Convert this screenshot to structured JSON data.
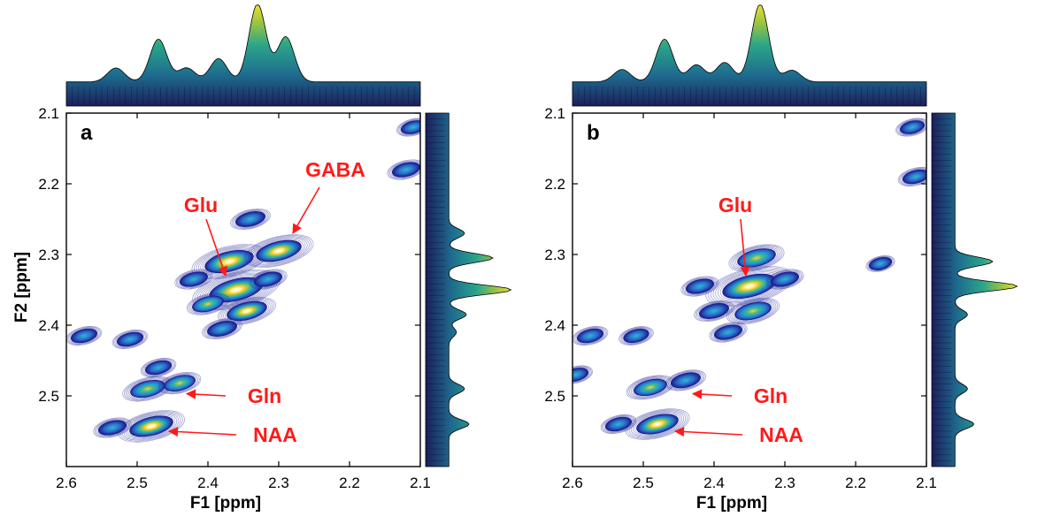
{
  "figure": {
    "ylabel": "F2 [ppm]",
    "xlabel": "F1 [ppm]"
  },
  "colors": {
    "annotation": "#ff1a1a",
    "contour_low": "#1a1a8c",
    "contour_high": "#ffffff",
    "axis": "#000000"
  },
  "chart_data": [
    {
      "type": "heatmap",
      "panel_label": "a",
      "xlabel": "F1 [ppm]",
      "ylabel": "F2 [ppm]",
      "x_range": [
        2.6,
        2.1
      ],
      "y_range": [
        2.1,
        2.6
      ],
      "x_ticks": [
        "2.6",
        "2.5",
        "2.4",
        "2.3",
        "2.2",
        "2.1"
      ],
      "y_ticks": [
        "2.1",
        "2.2",
        "2.3",
        "2.4",
        "2.5"
      ],
      "x_tick_values": [
        2.6,
        2.5,
        2.4,
        2.3,
        2.2,
        2.1
      ],
      "y_tick_values": [
        2.1,
        2.2,
        2.3,
        2.4,
        2.5
      ],
      "peaks": [
        {
          "f1": 2.36,
          "f2": 2.35,
          "intensity": 1.0
        },
        {
          "f1": 2.37,
          "f2": 2.31,
          "intensity": 0.85
        },
        {
          "f1": 2.3,
          "f2": 2.295,
          "intensity": 0.75
        },
        {
          "f1": 2.34,
          "f2": 2.25,
          "intensity": 0.3
        },
        {
          "f1": 2.345,
          "f2": 2.38,
          "intensity": 0.6
        },
        {
          "f1": 2.4,
          "f2": 2.37,
          "intensity": 0.35
        },
        {
          "f1": 2.38,
          "f2": 2.405,
          "intensity": 0.3
        },
        {
          "f1": 2.42,
          "f2": 2.335,
          "intensity": 0.25
        },
        {
          "f1": 2.315,
          "f2": 2.335,
          "intensity": 0.25
        },
        {
          "f1": 2.48,
          "f2": 2.543,
          "intensity": 0.7
        },
        {
          "f1": 2.485,
          "f2": 2.49,
          "intensity": 0.45
        },
        {
          "f1": 2.44,
          "f2": 2.482,
          "intensity": 0.35
        },
        {
          "f1": 2.47,
          "f2": 2.46,
          "intensity": 0.2
        },
        {
          "f1": 2.535,
          "f2": 2.545,
          "intensity": 0.25
        },
        {
          "f1": 2.575,
          "f2": 2.415,
          "intensity": 0.2
        },
        {
          "f1": 2.51,
          "f2": 2.42,
          "intensity": 0.2
        },
        {
          "f1": 2.12,
          "f2": 2.18,
          "intensity": 0.25
        },
        {
          "f1": 2.11,
          "f2": 2.12,
          "intensity": 0.15
        }
      ],
      "projection_f1": [
        {
          "ppm": 2.33,
          "height": 1.0
        },
        {
          "ppm": 2.29,
          "height": 0.58
        },
        {
          "ppm": 2.47,
          "height": 0.55
        },
        {
          "ppm": 2.385,
          "height": 0.3
        },
        {
          "ppm": 2.43,
          "height": 0.18
        },
        {
          "ppm": 2.53,
          "height": 0.18
        }
      ],
      "projection_f2": [
        {
          "ppm": 2.35,
          "height": 1.0
        },
        {
          "ppm": 2.305,
          "height": 0.7
        },
        {
          "ppm": 2.27,
          "height": 0.25
        },
        {
          "ppm": 2.385,
          "height": 0.28
        },
        {
          "ppm": 2.49,
          "height": 0.25
        },
        {
          "ppm": 2.54,
          "height": 0.32
        },
        {
          "ppm": 2.41,
          "height": 0.12
        }
      ],
      "annotations": [
        {
          "text": "GABA",
          "text_ppm": [
            2.22,
            2.19
          ],
          "target_ppm": [
            2.28,
            2.27
          ]
        },
        {
          "text": "Glu",
          "text_ppm": [
            2.41,
            2.24
          ],
          "target_ppm": [
            2.375,
            2.33
          ]
        },
        {
          "text": "Gln",
          "text_ppm": [
            2.32,
            2.51
          ],
          "target_ppm": [
            2.43,
            2.497
          ]
        },
        {
          "text": "NAA",
          "text_ppm": [
            2.305,
            2.565
          ],
          "target_ppm": [
            2.455,
            2.55
          ]
        }
      ]
    },
    {
      "type": "heatmap",
      "panel_label": "b",
      "xlabel": "F1 [ppm]",
      "ylabel": "",
      "x_range": [
        2.6,
        2.1
      ],
      "y_range": [
        2.1,
        2.6
      ],
      "x_ticks": [
        "2.6",
        "2.5",
        "2.4",
        "2.3",
        "2.2",
        "2.1"
      ],
      "y_ticks": [
        "2.1",
        "2.2",
        "2.3",
        "2.4",
        "2.5"
      ],
      "x_tick_values": [
        2.6,
        2.5,
        2.4,
        2.3,
        2.2,
        2.1
      ],
      "y_tick_values": [
        2.1,
        2.2,
        2.3,
        2.4,
        2.5
      ],
      "peaks": [
        {
          "f1": 2.35,
          "f2": 2.345,
          "intensity": 1.0
        },
        {
          "f1": 2.34,
          "f2": 2.305,
          "intensity": 0.55
        },
        {
          "f1": 2.345,
          "f2": 2.38,
          "intensity": 0.5
        },
        {
          "f1": 2.4,
          "f2": 2.38,
          "intensity": 0.3
        },
        {
          "f1": 2.38,
          "f2": 2.41,
          "intensity": 0.25
        },
        {
          "f1": 2.42,
          "f2": 2.345,
          "intensity": 0.25
        },
        {
          "f1": 2.3,
          "f2": 2.335,
          "intensity": 0.25
        },
        {
          "f1": 2.48,
          "f2": 2.54,
          "intensity": 0.65
        },
        {
          "f1": 2.49,
          "f2": 2.488,
          "intensity": 0.4
        },
        {
          "f1": 2.44,
          "f2": 2.478,
          "intensity": 0.3
        },
        {
          "f1": 2.535,
          "f2": 2.54,
          "intensity": 0.2
        },
        {
          "f1": 2.575,
          "f2": 2.415,
          "intensity": 0.2
        },
        {
          "f1": 2.51,
          "f2": 2.415,
          "intensity": 0.18
        },
        {
          "f1": 2.595,
          "f2": 2.47,
          "intensity": 0.15
        },
        {
          "f1": 2.115,
          "f2": 2.19,
          "intensity": 0.2
        },
        {
          "f1": 2.12,
          "f2": 2.12,
          "intensity": 0.15
        },
        {
          "f1": 2.165,
          "f2": 2.313,
          "intensity": 0.1
        }
      ],
      "projection_f1": [
        {
          "ppm": 2.335,
          "height": 1.0
        },
        {
          "ppm": 2.47,
          "height": 0.55
        },
        {
          "ppm": 2.425,
          "height": 0.22
        },
        {
          "ppm": 2.385,
          "height": 0.25
        },
        {
          "ppm": 2.53,
          "height": 0.16
        },
        {
          "ppm": 2.29,
          "height": 0.15
        }
      ],
      "projection_f2": [
        {
          "ppm": 2.345,
          "height": 1.0
        },
        {
          "ppm": 2.31,
          "height": 0.6
        },
        {
          "ppm": 2.385,
          "height": 0.2
        },
        {
          "ppm": 2.49,
          "height": 0.2
        },
        {
          "ppm": 2.54,
          "height": 0.3
        }
      ],
      "annotations": [
        {
          "text": "Glu",
          "text_ppm": [
            2.37,
            2.24
          ],
          "target_ppm": [
            2.355,
            2.33
          ]
        },
        {
          "text": "Gln",
          "text_ppm": [
            2.32,
            2.51
          ],
          "target_ppm": [
            2.43,
            2.497
          ]
        },
        {
          "text": "NAA",
          "text_ppm": [
            2.305,
            2.565
          ],
          "target_ppm": [
            2.455,
            2.55
          ]
        }
      ]
    }
  ]
}
